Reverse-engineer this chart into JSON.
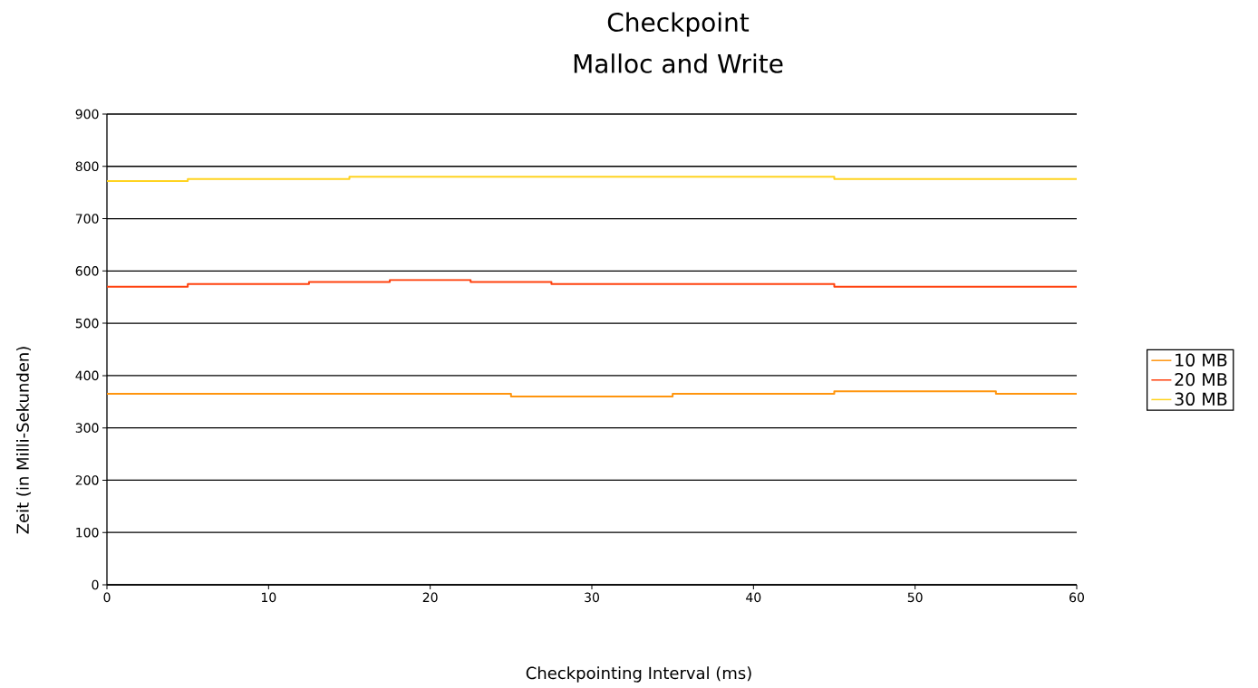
{
  "chart_data": {
    "type": "step",
    "title": "Checkpoint",
    "subtitle": "Malloc and Write",
    "xlabel": "Checkpointing Interval (ms)",
    "ylabel": "Zeit (in Milli-Sekunden)",
    "series": [
      {
        "name": "10 MB",
        "color": "#ff950e",
        "x": [
          0,
          10,
          20,
          30,
          40,
          50,
          60
        ],
        "values": [
          365,
          365,
          365,
          360,
          365,
          370,
          365
        ]
      },
      {
        "name": "20 MB",
        "color": "#ff420e",
        "x": [
          0,
          10,
          15,
          20,
          25,
          30,
          40,
          50,
          60
        ],
        "values": [
          570,
          575,
          579,
          583,
          579,
          575,
          575,
          570,
          570
        ]
      },
      {
        "name": "30 MB",
        "color": "#ffd320",
        "x": [
          0,
          10,
          20,
          30,
          40,
          50,
          60
        ],
        "values": [
          772,
          776,
          780,
          780,
          780,
          776,
          776
        ]
      }
    ],
    "xlim": [
      0,
      60
    ],
    "xticks": [
      0,
      10,
      20,
      30,
      40,
      50,
      60
    ],
    "ylim": [
      0,
      900
    ],
    "yticks": [
      0,
      100,
      200,
      300,
      400,
      500,
      600,
      700,
      800,
      900
    ],
    "grid": "y",
    "legend": "right",
    "marker": "none",
    "line_style": "solid"
  }
}
